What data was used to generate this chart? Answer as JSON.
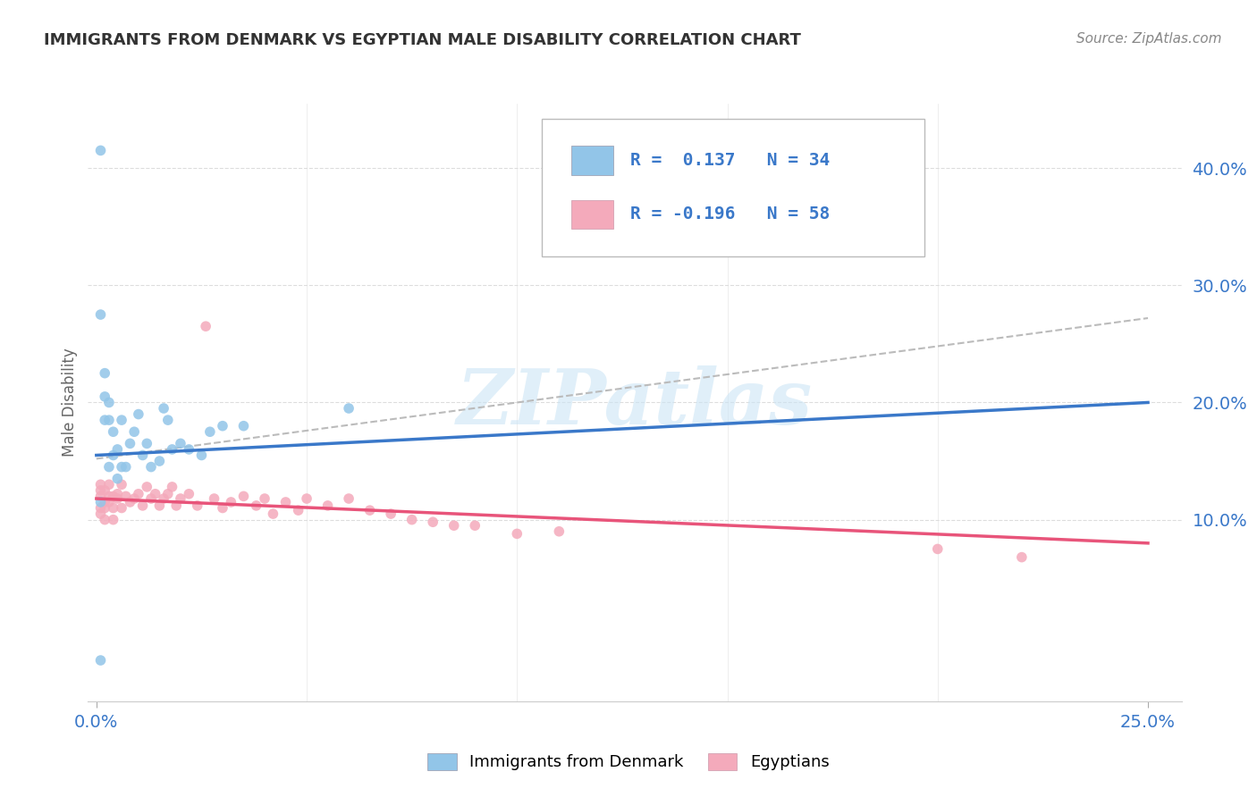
{
  "title": "IMMIGRANTS FROM DENMARK VS EGYPTIAN MALE DISABILITY CORRELATION CHART",
  "source": "Source: ZipAtlas.com",
  "ylabel": "Male Disability",
  "right_yticks_labels": [
    "40.0%",
    "30.0%",
    "20.0%",
    "10.0%"
  ],
  "right_ytick_vals": [
    0.4,
    0.3,
    0.2,
    0.1
  ],
  "xlim": [
    -0.002,
    0.258
  ],
  "ylim": [
    -0.055,
    0.455
  ],
  "blue_color": "#92C5E8",
  "pink_color": "#F4AABB",
  "trend_blue": "#3A78C9",
  "trend_pink": "#E8547A",
  "trend_gray": "#BBBBBB",
  "watermark": "ZIPatlas",
  "legend_label1": "Immigrants from Denmark",
  "legend_label2": "Egyptians",
  "blue_trend_x": [
    0.0,
    0.25
  ],
  "blue_trend_y": [
    0.155,
    0.2
  ],
  "pink_trend_x": [
    0.0,
    0.25
  ],
  "pink_trend_y": [
    0.118,
    0.08
  ],
  "gray_trend_x": [
    0.0,
    0.25
  ],
  "gray_trend_y": [
    0.152,
    0.272
  ],
  "denmark_x": [
    0.001,
    0.001,
    0.002,
    0.002,
    0.002,
    0.003,
    0.003,
    0.003,
    0.004,
    0.004,
    0.005,
    0.005,
    0.006,
    0.006,
    0.007,
    0.008,
    0.009,
    0.01,
    0.011,
    0.012,
    0.013,
    0.015,
    0.016,
    0.017,
    0.018,
    0.02,
    0.022,
    0.025,
    0.027,
    0.03,
    0.035,
    0.06,
    0.001,
    0.001
  ],
  "denmark_y": [
    0.415,
    0.275,
    0.205,
    0.185,
    0.225,
    0.2,
    0.185,
    0.145,
    0.175,
    0.155,
    0.16,
    0.135,
    0.185,
    0.145,
    0.145,
    0.165,
    0.175,
    0.19,
    0.155,
    0.165,
    0.145,
    0.15,
    0.195,
    0.185,
    0.16,
    0.165,
    0.16,
    0.155,
    0.175,
    0.18,
    0.18,
    0.195,
    0.115,
    -0.02
  ],
  "egypt_x": [
    0.001,
    0.001,
    0.001,
    0.001,
    0.001,
    0.002,
    0.002,
    0.002,
    0.002,
    0.003,
    0.003,
    0.003,
    0.004,
    0.004,
    0.004,
    0.005,
    0.005,
    0.006,
    0.006,
    0.007,
    0.008,
    0.009,
    0.01,
    0.011,
    0.012,
    0.013,
    0.014,
    0.015,
    0.016,
    0.017,
    0.018,
    0.019,
    0.02,
    0.022,
    0.024,
    0.026,
    0.028,
    0.03,
    0.032,
    0.035,
    0.038,
    0.04,
    0.042,
    0.045,
    0.048,
    0.05,
    0.055,
    0.06,
    0.065,
    0.07,
    0.075,
    0.08,
    0.085,
    0.09,
    0.1,
    0.11,
    0.2,
    0.22
  ],
  "egypt_y": [
    0.12,
    0.125,
    0.11,
    0.105,
    0.13,
    0.115,
    0.125,
    0.11,
    0.1,
    0.12,
    0.115,
    0.13,
    0.12,
    0.11,
    0.1,
    0.118,
    0.122,
    0.11,
    0.13,
    0.12,
    0.115,
    0.118,
    0.122,
    0.112,
    0.128,
    0.118,
    0.122,
    0.112,
    0.118,
    0.122,
    0.128,
    0.112,
    0.118,
    0.122,
    0.112,
    0.265,
    0.118,
    0.11,
    0.115,
    0.12,
    0.112,
    0.118,
    0.105,
    0.115,
    0.108,
    0.118,
    0.112,
    0.118,
    0.108,
    0.105,
    0.1,
    0.098,
    0.095,
    0.095,
    0.088,
    0.09,
    0.075,
    0.068
  ]
}
